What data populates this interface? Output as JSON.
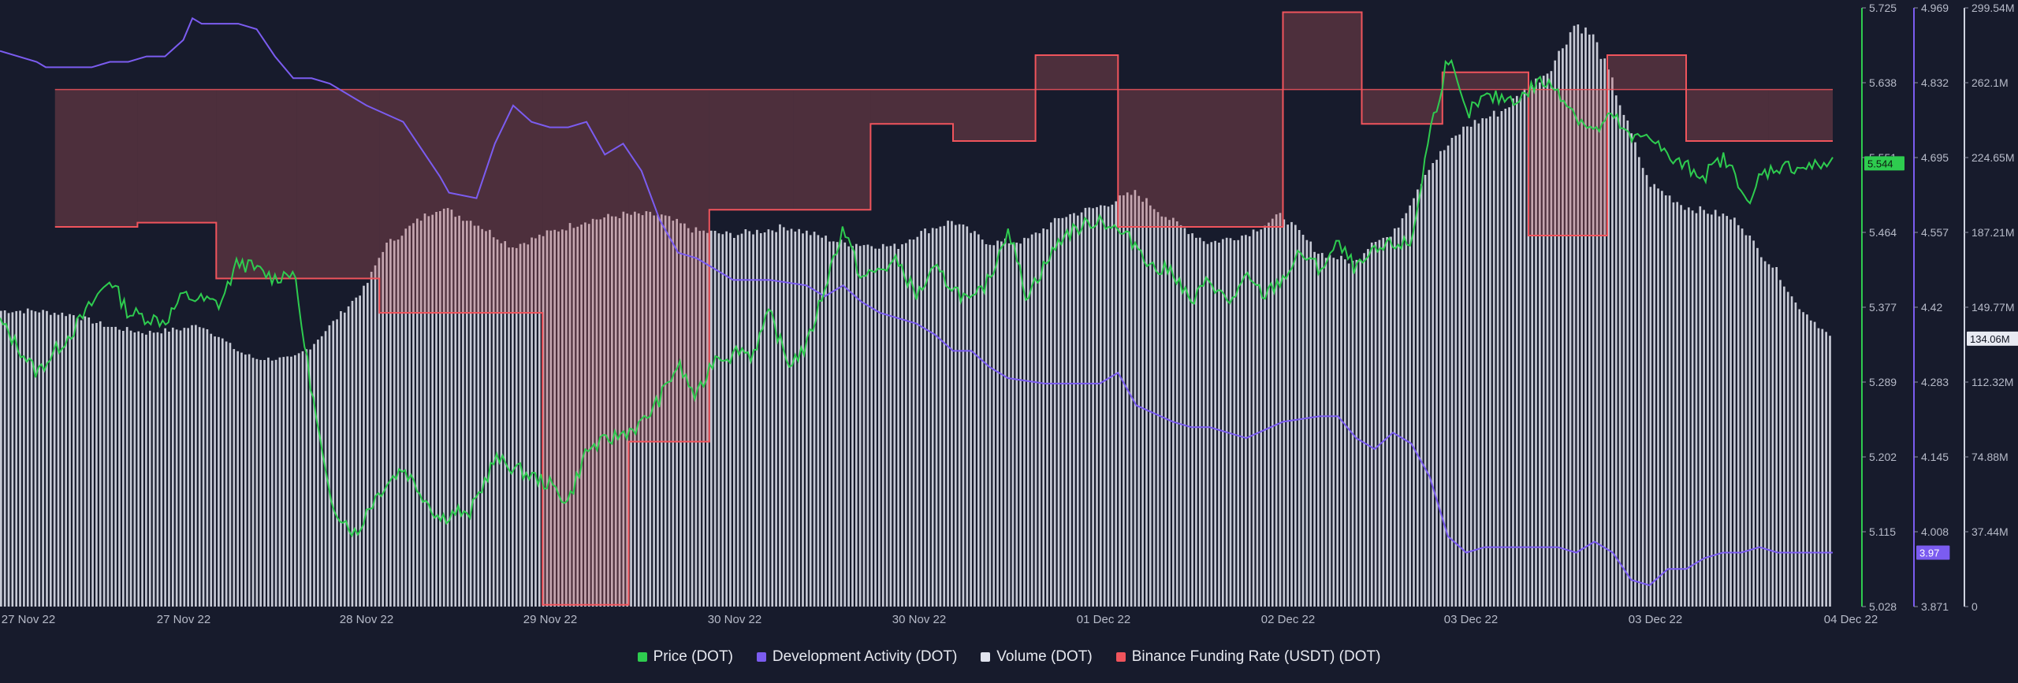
{
  "chart_data": {
    "type": "line",
    "title": "",
    "x_tick_labels": [
      "27 Nov 22",
      "27 Nov 22",
      "28 Nov 22",
      "29 Nov 22",
      "30 Nov 22",
      "30 Nov 22",
      "01 Dec 22",
      "02 Dec 22",
      "03 Dec 22",
      "03 Dec 22",
      "04 Dec 22"
    ],
    "axes": {
      "price": {
        "ticks": [
          "5.725",
          "5.638",
          "5.551",
          "5.464",
          "5.377",
          "5.289",
          "5.202",
          "5.115",
          "5.028"
        ],
        "range": [
          5.028,
          5.725
        ],
        "current_label": "5.544",
        "color": "#2ecc4f"
      },
      "dev_activity": {
        "ticks": [
          "4.969",
          "4.832",
          "4.695",
          "4.557",
          "4.42",
          "4.283",
          "4.145",
          "4.008",
          "3.871"
        ],
        "range": [
          3.871,
          4.969
        ],
        "current_label": "3.97",
        "color": "#7b5cf0"
      },
      "volume": {
        "ticks": [
          "299.54M",
          "262.1M",
          "224.65M",
          "187.21M",
          "149.77M",
          "112.32M",
          "74.88M",
          "37.44M",
          "0"
        ],
        "range": [
          0,
          299.54
        ],
        "unit": "M",
        "current_label": "134.06M",
        "color": "#e0e3ee"
      },
      "funding_rate": {
        "baseline": 5.63,
        "color": "#f0545c"
      }
    },
    "series": [
      {
        "name": "Price (DOT)",
        "axis": "price",
        "color": "#2ecc4f",
        "x": [
          0,
          0.02,
          0.04,
          0.06,
          0.07,
          0.09,
          0.1,
          0.12,
          0.13,
          0.15,
          0.16,
          0.17,
          0.18,
          0.195,
          0.2,
          0.21,
          0.22,
          0.24,
          0.25,
          0.255,
          0.27,
          0.3,
          0.31,
          0.32,
          0.33,
          0.35,
          0.36,
          0.37,
          0.38,
          0.39,
          0.4,
          0.403,
          0.41,
          0.42,
          0.43,
          0.44,
          0.46,
          0.47,
          0.49,
          0.5,
          0.51,
          0.53,
          0.54,
          0.55,
          0.56,
          0.58,
          0.6,
          0.62,
          0.63,
          0.64,
          0.65,
          0.66,
          0.67,
          0.68,
          0.69,
          0.7,
          0.71,
          0.72,
          0.73,
          0.74,
          0.75,
          0.76,
          0.77,
          0.78,
          0.785,
          0.79,
          0.8,
          0.81,
          0.82,
          0.83,
          0.84,
          0.85,
          0.86,
          0.87,
          0.88,
          0.89,
          0.9,
          0.91,
          0.92,
          0.93,
          0.94,
          0.95,
          0.955,
          0.96,
          0.97,
          0.98,
          0.99,
          1.0
        ],
        "values": [
          5.36,
          5.3,
          5.35,
          5.41,
          5.37,
          5.36,
          5.39,
          5.38,
          5.43,
          5.41,
          5.42,
          5.28,
          5.15,
          5.11,
          5.14,
          5.17,
          5.19,
          5.13,
          5.14,
          5.13,
          5.2,
          5.17,
          5.15,
          5.21,
          5.22,
          5.24,
          5.27,
          5.31,
          5.27,
          5.32,
          5.32,
          5.33,
          5.32,
          5.37,
          5.31,
          5.33,
          5.47,
          5.41,
          5.43,
          5.39,
          5.42,
          5.38,
          5.41,
          5.47,
          5.39,
          5.46,
          5.48,
          5.45,
          5.42,
          5.42,
          5.38,
          5.41,
          5.38,
          5.41,
          5.39,
          5.41,
          5.44,
          5.42,
          5.45,
          5.42,
          5.44,
          5.45,
          5.45,
          5.58,
          5.62,
          5.67,
          5.6,
          5.62,
          5.62,
          5.62,
          5.64,
          5.63,
          5.6,
          5.58,
          5.6,
          5.57,
          5.58,
          5.55,
          5.54,
          5.53,
          5.55,
          5.52,
          5.49,
          5.53,
          5.54,
          5.54,
          5.54,
          5.545
        ]
      },
      {
        "name": "Development Activity (DOT)",
        "axis": "dev_activity",
        "color": "#7b5cf0",
        "x": [
          0,
          0.02,
          0.025,
          0.05,
          0.06,
          0.07,
          0.08,
          0.09,
          0.1,
          0.105,
          0.11,
          0.13,
          0.14,
          0.15,
          0.16,
          0.17,
          0.18,
          0.2,
          0.22,
          0.24,
          0.245,
          0.26,
          0.27,
          0.28,
          0.29,
          0.3,
          0.31,
          0.32,
          0.33,
          0.34,
          0.35,
          0.36,
          0.37,
          0.38,
          0.39,
          0.4,
          0.42,
          0.44,
          0.45,
          0.46,
          0.47,
          0.48,
          0.5,
          0.51,
          0.52,
          0.53,
          0.54,
          0.55,
          0.57,
          0.6,
          0.61,
          0.62,
          0.64,
          0.65,
          0.66,
          0.67,
          0.68,
          0.7,
          0.72,
          0.73,
          0.74,
          0.75,
          0.76,
          0.77,
          0.78,
          0.79,
          0.8,
          0.81,
          0.82,
          0.83,
          0.84,
          0.85,
          0.86,
          0.87,
          0.88,
          0.89,
          0.9,
          0.91,
          0.92,
          0.93,
          0.94,
          0.95,
          0.96,
          0.97,
          0.98,
          0.99,
          1.0
        ],
        "values": [
          4.89,
          4.87,
          4.86,
          4.86,
          4.87,
          4.87,
          4.88,
          4.88,
          4.91,
          4.95,
          4.94,
          4.94,
          4.93,
          4.88,
          4.84,
          4.84,
          4.83,
          4.79,
          4.76,
          4.66,
          4.63,
          4.62,
          4.72,
          4.79,
          4.76,
          4.75,
          4.75,
          4.76,
          4.7,
          4.72,
          4.67,
          4.58,
          4.52,
          4.51,
          4.49,
          4.47,
          4.47,
          4.46,
          4.44,
          4.46,
          4.43,
          4.41,
          4.39,
          4.37,
          4.34,
          4.34,
          4.31,
          4.29,
          4.28,
          4.28,
          4.3,
          4.24,
          4.21,
          4.2,
          4.2,
          4.19,
          4.18,
          4.21,
          4.22,
          4.22,
          4.18,
          4.16,
          4.19,
          4.17,
          4.11,
          4.0,
          3.97,
          3.98,
          3.98,
          3.98,
          3.98,
          3.98,
          3.97,
          3.99,
          3.97,
          3.92,
          3.91,
          3.94,
          3.94,
          3.96,
          3.97,
          3.97,
          3.98,
          3.97,
          3.97,
          3.97,
          3.97
        ]
      },
      {
        "name": "Volume (DOT)",
        "axis": "volume",
        "color": "#e0e3ee",
        "x": [
          0,
          0.02,
          0.04,
          0.06,
          0.08,
          0.1,
          0.11,
          0.12,
          0.13,
          0.14,
          0.15,
          0.16,
          0.17,
          0.2,
          0.21,
          0.23,
          0.24,
          0.26,
          0.28,
          0.3,
          0.32,
          0.34,
          0.36,
          0.38,
          0.4,
          0.43,
          0.46,
          0.49,
          0.5,
          0.52,
          0.54,
          0.56,
          0.58,
          0.6,
          0.62,
          0.64,
          0.66,
          0.68,
          0.7,
          0.72,
          0.74,
          0.75,
          0.76,
          0.78,
          0.8,
          0.82,
          0.84,
          0.845,
          0.85,
          0.86,
          0.87,
          0.88,
          0.9,
          0.92,
          0.93,
          0.94,
          0.95,
          0.96,
          0.97,
          0.98,
          1.0
        ],
        "values": [
          148,
          148,
          146,
          140,
          137,
          139,
          141,
          135,
          128,
          124,
          124,
          124,
          130,
          160,
          180,
          194,
          200,
          192,
          180,
          187,
          193,
          196,
          196,
          188,
          186,
          190,
          182,
          180,
          186,
          193,
          182,
          183,
          195,
          200,
          207,
          193,
          182,
          186,
          196,
          177,
          172,
          184,
          185,
          220,
          240,
          248,
          264,
          268,
          275,
          292,
          285,
          263,
          212,
          200,
          198,
          196,
          192,
          178,
          168,
          152,
          134.06
        ]
      },
      {
        "name": "Binance Funding Rate (USDT) (DOT)",
        "axis": "funding_rate",
        "color": "#f0545c",
        "type": "step",
        "x": [
          0.03,
          0.075,
          0.118,
          0.162,
          0.207,
          0.251,
          0.296,
          0.343,
          0.387,
          0.433,
          0.475,
          0.52,
          0.565,
          0.61,
          0.7,
          0.743,
          0.787,
          0.834,
          0.877,
          0.92,
          0.965,
          1.0
        ],
        "values": [
          5.47,
          5.475,
          5.41,
          5.41,
          5.37,
          5.37,
          5.03,
          5.22,
          5.49,
          5.49,
          5.59,
          5.57,
          5.67,
          5.47,
          5.72,
          5.59,
          5.65,
          5.46,
          5.67,
          5.57,
          5.57,
          5.45
        ]
      }
    ],
    "legend_position": "bottom",
    "grid": false
  },
  "legend": {
    "items": [
      {
        "label": "Price (DOT)",
        "color": "#2ecc4f"
      },
      {
        "label": "Development Activity (DOT)",
        "color": "#7b5cf0"
      },
      {
        "label": "Volume (DOT)",
        "color": "#e0e3ee"
      },
      {
        "label": "Binance Funding Rate (USDT) (DOT)",
        "color": "#f0545c"
      }
    ]
  }
}
